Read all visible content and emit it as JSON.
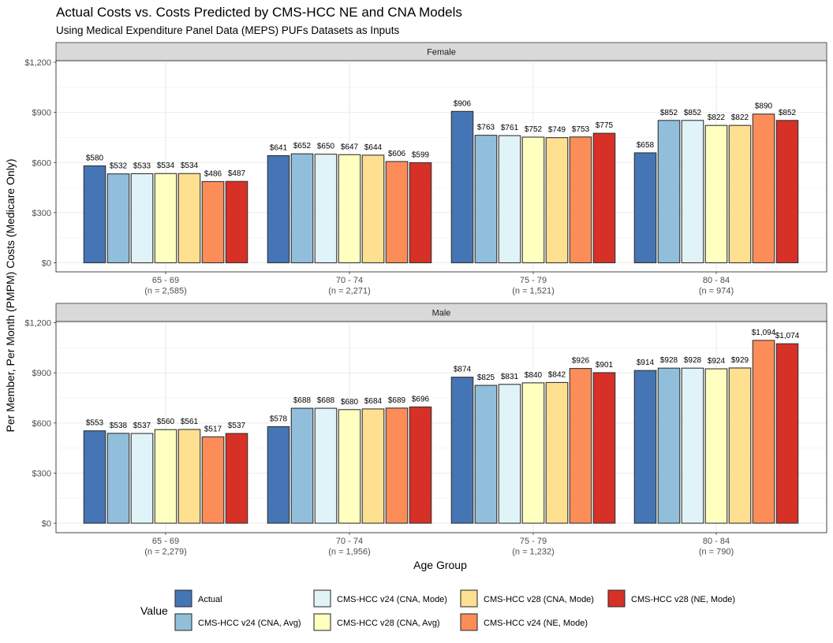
{
  "chart_data": {
    "type": "bar",
    "title": "Actual Costs vs. Costs Predicted by CMS-HCC NE and CNA Models",
    "subtitle": "Using Medical Expenditure Panel Data (MEPS) PUFs Datasets as Inputs",
    "xlabel": "Age Group",
    "ylabel": "Per Member, Per Month (PMPM) Costs (Medicare Only)",
    "ylim": [
      0,
      1200
    ],
    "y_ticks": [
      0,
      300,
      600,
      900,
      1200
    ],
    "y_tick_labels": [
      "$0",
      "$300",
      "$600",
      "$900",
      "$1,200"
    ],
    "grid": true,
    "legend": {
      "position": "bottom",
      "title": "Value",
      "entries": [
        {
          "name": "Actual",
          "color": "#4575b4"
        },
        {
          "name": "CMS-HCC v24 (CNA, Avg)",
          "color": "#91bfdb"
        },
        {
          "name": "CMS-HCC v24 (CNA, Mode)",
          "color": "#e0f3f8"
        },
        {
          "name": "CMS-HCC v28 (CNA, Avg)",
          "color": "#ffffbf"
        },
        {
          "name": "CMS-HCC v28 (CNA, Mode)",
          "color": "#fee090"
        },
        {
          "name": "CMS-HCC v24 (NE, Mode)",
          "color": "#fc8d59"
        },
        {
          "name": "CMS-HCC v28 (NE, Mode)",
          "color": "#d73027"
        }
      ]
    },
    "series_names": [
      "Actual",
      "CMS-HCC v24 (CNA, Avg)",
      "CMS-HCC v24 (CNA, Mode)",
      "CMS-HCC v28 (CNA, Avg)",
      "CMS-HCC v28 (CNA, Mode)",
      "CMS-HCC v24 (NE, Mode)",
      "CMS-HCC v28 (NE, Mode)"
    ],
    "panels": [
      {
        "name": "Female",
        "categories": [
          "65 - 69",
          "70 - 74",
          "75 - 79",
          "80 - 84"
        ],
        "category_counts": [
          "(n = 2,585)",
          "(n = 2,271)",
          "(n = 1,521)",
          "(n = 974)"
        ],
        "values": [
          [
            580,
            532,
            533,
            534,
            534,
            486,
            487
          ],
          [
            641,
            652,
            650,
            647,
            644,
            606,
            599
          ],
          [
            906,
            763,
            761,
            752,
            749,
            753,
            775
          ],
          [
            658,
            852,
            852,
            822,
            822,
            890,
            852
          ]
        ],
        "labels": [
          [
            "$580",
            "$532",
            "$533",
            "$534",
            "$534",
            "$486",
            "$487"
          ],
          [
            "$641",
            "$652",
            "$650",
            "$647",
            "$644",
            "$606",
            "$599"
          ],
          [
            "$906",
            "$763",
            "$761",
            "$752",
            "$749",
            "$753",
            "$775"
          ],
          [
            "$658",
            "$852",
            "$852",
            "$822",
            "$822",
            "$890",
            "$852"
          ]
        ]
      },
      {
        "name": "Male",
        "categories": [
          "65 - 69",
          "70 - 74",
          "75 - 79",
          "80 - 84"
        ],
        "category_counts": [
          "(n = 2,279)",
          "(n = 1,956)",
          "(n = 1,232)",
          "(n = 790)"
        ],
        "values": [
          [
            553,
            538,
            537,
            560,
            561,
            517,
            537
          ],
          [
            578,
            688,
            688,
            680,
            684,
            689,
            696
          ],
          [
            874,
            825,
            831,
            840,
            842,
            926,
            901
          ],
          [
            914,
            928,
            928,
            924,
            929,
            1094,
            1074
          ]
        ],
        "labels": [
          [
            "$553",
            "$538",
            "$537",
            "$560",
            "$561",
            "$517",
            "$537"
          ],
          [
            "$578",
            "$688",
            "$688",
            "$680",
            "$684",
            "$689",
            "$696"
          ],
          [
            "$874",
            "$825",
            "$831",
            "$840",
            "$842",
            "$926",
            "$901"
          ],
          [
            "$914",
            "$928",
            "$928",
            "$924",
            "$929",
            "$1,094",
            "$1,074"
          ]
        ]
      }
    ]
  }
}
